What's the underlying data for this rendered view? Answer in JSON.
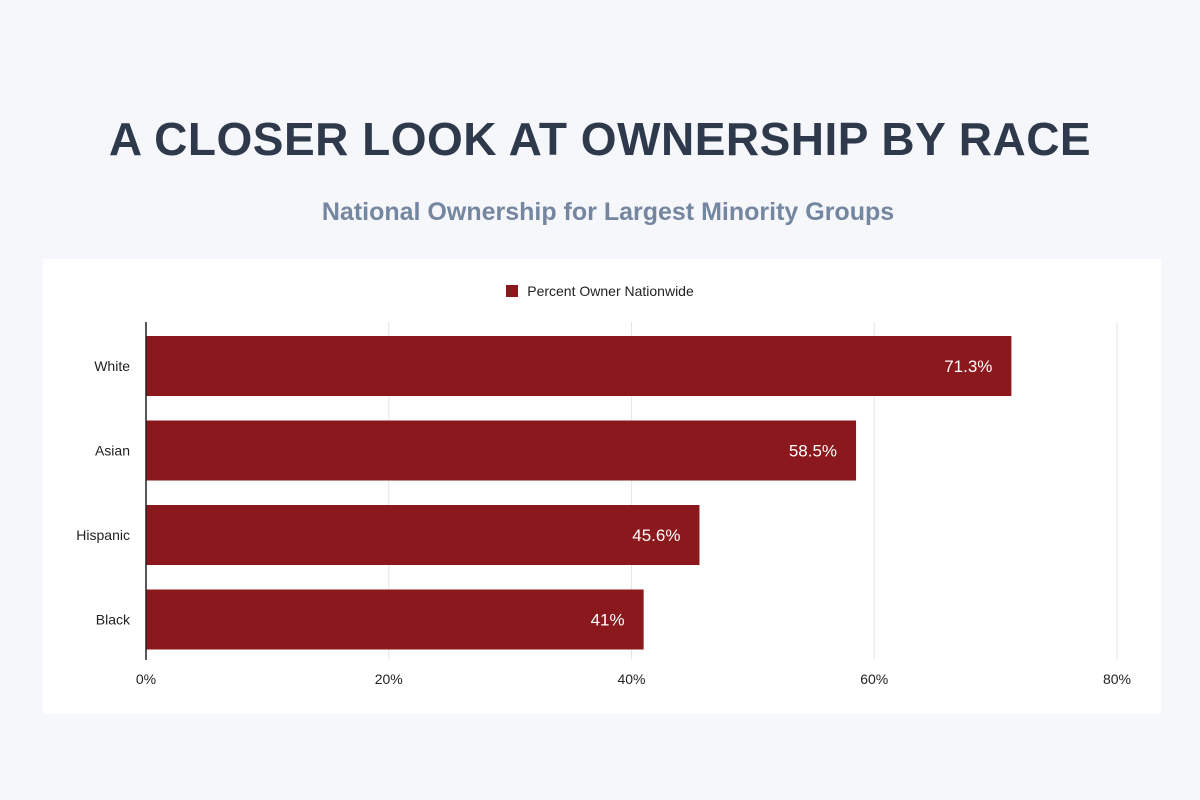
{
  "title": "A CLOSER LOOK AT OWNERSHIP BY RACE",
  "subtitle": "National Ownership for Largest Minority Groups",
  "colors": {
    "bar": "#8b181c",
    "grid": "#e6e6e6",
    "axis": "#222222"
  },
  "chart_data": {
    "type": "bar",
    "orientation": "horizontal",
    "categories": [
      "White",
      "Asian",
      "Hispanic",
      "Black"
    ],
    "series": [
      {
        "name": "Percent Owner Nationwide",
        "values": [
          71.3,
          58.5,
          45.6,
          41
        ],
        "labels": [
          "71.3%",
          "58.5%",
          "45.6%",
          "41%"
        ]
      }
    ],
    "xlim": [
      0,
      80
    ],
    "xticks": [
      0,
      20,
      40,
      60,
      80
    ],
    "xtick_labels": [
      "0%",
      "20%",
      "40%",
      "60%",
      "80%"
    ],
    "legend": "top-center",
    "grid": true
  }
}
